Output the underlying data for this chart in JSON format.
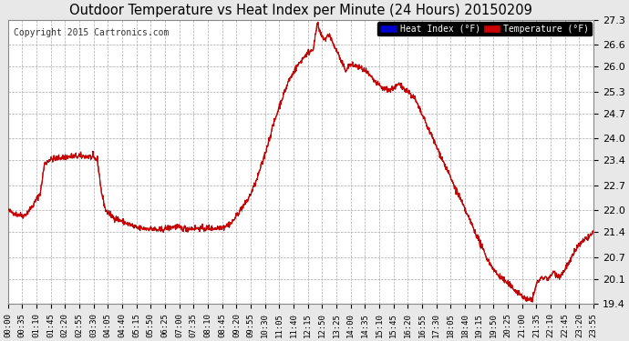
{
  "title": "Outdoor Temperature vs Heat Index per Minute (24 Hours) 20150209",
  "copyright": "Copyright 2015 Cartronics.com",
  "ylim": [
    19.4,
    27.3
  ],
  "yticks": [
    19.4,
    20.1,
    20.7,
    21.4,
    22.0,
    22.7,
    23.4,
    24.0,
    24.7,
    25.3,
    26.0,
    26.6,
    27.3
  ],
  "bg_color": "#e8e8e8",
  "plot_bg_color": "#ffffff",
  "grid_color": "#aaaaaa",
  "line_color_temp": "#cc0000",
  "line_color_heat": "#880000",
  "legend_heat_bg": "#0000cc",
  "legend_temp_bg": "#cc0000",
  "xtick_labels": [
    "00:00",
    "00:35",
    "01:10",
    "01:45",
    "02:20",
    "02:55",
    "03:30",
    "04:05",
    "04:40",
    "05:15",
    "05:50",
    "06:25",
    "07:00",
    "07:35",
    "08:10",
    "08:45",
    "09:20",
    "09:55",
    "10:30",
    "11:05",
    "11:40",
    "12:15",
    "12:50",
    "13:25",
    "14:00",
    "14:35",
    "15:10",
    "15:45",
    "16:20",
    "16:55",
    "17:30",
    "18:05",
    "18:40",
    "19:15",
    "19:50",
    "20:25",
    "21:00",
    "21:35",
    "22:10",
    "22:45",
    "23:20",
    "23:55"
  ],
  "keypoints": [
    [
      0,
      22.0
    ],
    [
      20,
      21.9
    ],
    [
      40,
      21.85
    ],
    [
      60,
      22.1
    ],
    [
      80,
      22.5
    ],
    [
      90,
      23.3
    ],
    [
      100,
      23.4
    ],
    [
      120,
      23.45
    ],
    [
      150,
      23.5
    ],
    [
      180,
      23.5
    ],
    [
      200,
      23.5
    ],
    [
      220,
      23.4
    ],
    [
      230,
      22.5
    ],
    [
      240,
      22.0
    ],
    [
      260,
      21.8
    ],
    [
      280,
      21.7
    ],
    [
      300,
      21.6
    ],
    [
      320,
      21.5
    ],
    [
      350,
      21.5
    ],
    [
      370,
      21.45
    ],
    [
      390,
      21.5
    ],
    [
      410,
      21.55
    ],
    [
      430,
      21.5
    ],
    [
      460,
      21.5
    ],
    [
      490,
      21.5
    ],
    [
      510,
      21.5
    ],
    [
      530,
      21.55
    ],
    [
      550,
      21.65
    ],
    [
      570,
      22.0
    ],
    [
      590,
      22.3
    ],
    [
      610,
      22.8
    ],
    [
      630,
      23.5
    ],
    [
      650,
      24.3
    ],
    [
      670,
      25.0
    ],
    [
      690,
      25.6
    ],
    [
      710,
      26.0
    ],
    [
      730,
      26.3
    ],
    [
      750,
      26.5
    ],
    [
      755,
      26.8
    ],
    [
      760,
      27.2
    ],
    [
      765,
      27.0
    ],
    [
      770,
      26.85
    ],
    [
      780,
      26.75
    ],
    [
      790,
      26.9
    ],
    [
      800,
      26.6
    ],
    [
      810,
      26.4
    ],
    [
      820,
      26.1
    ],
    [
      830,
      25.9
    ],
    [
      840,
      26.05
    ],
    [
      860,
      26.0
    ],
    [
      880,
      25.85
    ],
    [
      900,
      25.6
    ],
    [
      920,
      25.4
    ],
    [
      940,
      25.35
    ],
    [
      960,
      25.5
    ],
    [
      980,
      25.35
    ],
    [
      1000,
      25.1
    ],
    [
      1020,
      24.6
    ],
    [
      1040,
      24.1
    ],
    [
      1060,
      23.6
    ],
    [
      1080,
      23.1
    ],
    [
      1100,
      22.6
    ],
    [
      1120,
      22.1
    ],
    [
      1140,
      21.6
    ],
    [
      1160,
      21.1
    ],
    [
      1180,
      20.6
    ],
    [
      1200,
      20.25
    ],
    [
      1220,
      20.05
    ],
    [
      1240,
      19.85
    ],
    [
      1260,
      19.65
    ],
    [
      1275,
      19.5
    ],
    [
      1290,
      19.55
    ],
    [
      1300,
      20.0
    ],
    [
      1310,
      20.1
    ],
    [
      1320,
      20.15
    ],
    [
      1330,
      20.1
    ],
    [
      1340,
      20.3
    ],
    [
      1350,
      20.2
    ],
    [
      1360,
      20.2
    ],
    [
      1370,
      20.4
    ],
    [
      1380,
      20.55
    ],
    [
      1390,
      20.8
    ],
    [
      1400,
      21.0
    ],
    [
      1410,
      21.1
    ],
    [
      1420,
      21.2
    ],
    [
      1430,
      21.3
    ],
    [
      1440,
      21.4
    ]
  ]
}
